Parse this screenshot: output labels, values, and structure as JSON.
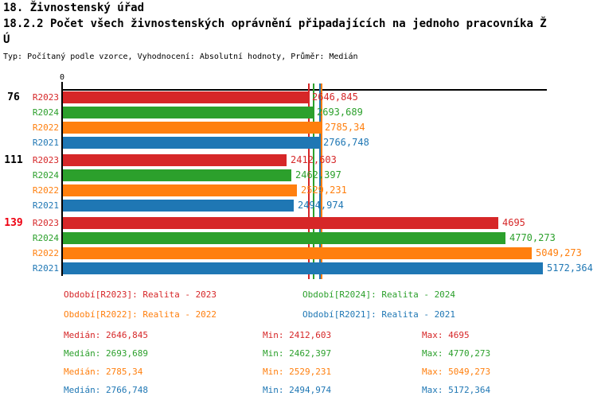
{
  "header": {
    "title1": "18. Živnostenský úřad",
    "title2_line1": "18.2.2 Počet všech živnostenských oprávnění připadajících na jednoho pracovníka Ž",
    "title2_line2": "Ú",
    "subtitle": "Typ: Počítaný podle vzorce, Vyhodnocení: Absolutní hodnoty, Průměr: Medián"
  },
  "colors": {
    "red": "#d62728",
    "green": "#2ca02c",
    "orange": "#ff7f0e",
    "blue": "#1f77b4",
    "highlight_group": "#ee0011",
    "axis": "#000000"
  },
  "chart_data": {
    "type": "bar",
    "orientation": "horizontal",
    "axis_origin_label": "0",
    "xlim": [
      0,
      5172.364
    ],
    "grid": false,
    "series_labels": [
      "R2023",
      "R2024",
      "R2022",
      "R2021"
    ],
    "series_colors": [
      "#d62728",
      "#2ca02c",
      "#ff7f0e",
      "#1f77b4"
    ],
    "groups": [
      {
        "label": "76",
        "label_color": "#000000",
        "values": [
          2646.845,
          2693.689,
          2785.34,
          2766.748
        ],
        "value_labels": [
          "2646,845",
          "2693,689",
          "2785,34",
          "2766,748"
        ]
      },
      {
        "label": "111",
        "label_color": "#000000",
        "values": [
          2412.603,
          2462.397,
          2529.231,
          2494.974
        ],
        "value_labels": [
          "2412,603",
          "2462,397",
          "2529,231",
          "2494,974"
        ]
      },
      {
        "label": "139",
        "label_color": "#ee0011",
        "values": [
          4695,
          4770.273,
          5049.273,
          5172.364
        ],
        "value_labels": [
          "4695",
          "4770,273",
          "5049,273",
          "5172,364"
        ]
      }
    ],
    "median_lines": {
      "values": [
        2646.845,
        2693.689,
        2785.34,
        2766.748
      ],
      "colors": [
        "#d62728",
        "#2ca02c",
        "#ff7f0e",
        "#1f77b4"
      ]
    }
  },
  "legend": [
    {
      "series": "R2023",
      "text": "Období[R2023]: Realita - 2023",
      "color": "#d62728"
    },
    {
      "series": "R2024",
      "text": "Období[R2024]: Realita - 2024",
      "color": "#2ca02c"
    },
    {
      "series": "R2022",
      "text": "Období[R2022]: Realita - 2022",
      "color": "#ff7f0e"
    },
    {
      "series": "R2021",
      "text": "Období[R2021]: Realita - 2021",
      "color": "#1f77b4"
    }
  ],
  "stats": [
    {
      "series": "R2023",
      "color": "#d62728",
      "median": "Medián: 2646,845",
      "min": "Min: 2412,603",
      "max": "Max: 4695"
    },
    {
      "series": "R2024",
      "color": "#2ca02c",
      "median": "Medián: 2693,689",
      "min": "Min: 2462,397",
      "max": "Max: 4770,273"
    },
    {
      "series": "R2022",
      "color": "#ff7f0e",
      "median": "Medián: 2785,34",
      "min": "Min: 2529,231",
      "max": "Max: 5049,273"
    },
    {
      "series": "R2021",
      "color": "#1f77b4",
      "median": "Medián: 2766,748",
      "min": "Min: 2494,974",
      "max": "Max: 5172,364"
    }
  ]
}
